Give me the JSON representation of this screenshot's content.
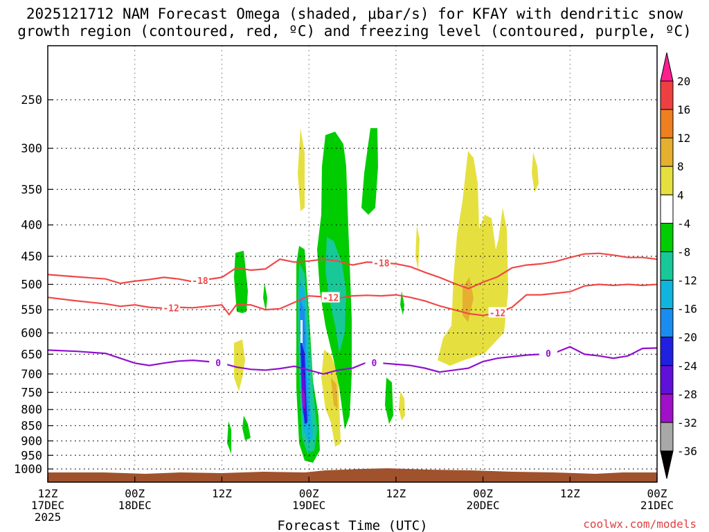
{
  "chart_data": {
    "type": "heatmap",
    "title_line1": "2025121712 NAM Forecast Omega (shaded, μbar/s) for KFAY with dendritic snow",
    "title_line2": "growth region (contoured, red, ºC) and freezing level (contoured, purple, ºC)",
    "xlabel": "Forecast Time (UTC)",
    "ylabel": "",
    "x_range_hours": [
      0,
      84
    ],
    "y_range_hpa": [
      200,
      1025
    ],
    "y_ticks": [
      250,
      300,
      350,
      400,
      450,
      500,
      550,
      600,
      650,
      700,
      750,
      800,
      850,
      900,
      950,
      1000
    ],
    "x_ticks": [
      {
        "hour": 0,
        "line1": "12Z",
        "line2": "17DEC",
        "line3": "2025"
      },
      {
        "hour": 12,
        "line1": "00Z",
        "line2": "18DEC",
        "line3": ""
      },
      {
        "hour": 24,
        "line1": "12Z",
        "line2": "",
        "line3": ""
      },
      {
        "hour": 36,
        "line1": "00Z",
        "line2": "19DEC",
        "line3": ""
      },
      {
        "hour": 48,
        "line1": "12Z",
        "line2": "",
        "line3": ""
      },
      {
        "hour": 60,
        "line1": "00Z",
        "line2": "20DEC",
        "line3": ""
      },
      {
        "hour": 72,
        "line1": "12Z",
        "line2": "",
        "line3": ""
      },
      {
        "hour": 84,
        "line1": "00Z",
        "line2": "21DEC",
        "line3": ""
      }
    ],
    "colorbar": {
      "labels": [
        "20",
        "16",
        "12",
        "8",
        "4",
        "-4",
        "-8",
        "-12",
        "-16",
        "-20",
        "-24",
        "-28",
        "-32",
        "-36"
      ],
      "colors": [
        "#ff1f8e",
        "#ee4040",
        "#ee7f20",
        "#e5b030",
        "#e5e040",
        "#ffffff",
        "#00cc00",
        "#18c898",
        "#10b4dc",
        "#1a8cf0",
        "#2020e0",
        "#6010d8",
        "#a010c8",
        "#a8a8a8",
        "#000000"
      ]
    },
    "series": [
      {
        "name": "-18 °C isotherm",
        "color": "#f04848",
        "label": "-18",
        "x": [
          0,
          4,
          8,
          10,
          12,
          14,
          16,
          18,
          20,
          22,
          24,
          26,
          28,
          30,
          32,
          34,
          36,
          38,
          40,
          42,
          44,
          46,
          48,
          50,
          52,
          54,
          56,
          58,
          60,
          62,
          64,
          66,
          68,
          70,
          72,
          74,
          76,
          78,
          80,
          82,
          84
        ],
        "y": [
          482,
          486,
          490,
          498,
          494,
          491,
          487,
          490,
          495,
          491,
          487,
          470,
          474,
          472,
          455,
          460,
          458,
          455,
          458,
          465,
          460,
          461,
          463,
          468,
          478,
          487,
          498,
          508,
          496,
          486,
          470,
          465,
          463,
          459,
          452,
          446,
          445,
          448,
          452,
          452,
          455
        ]
      },
      {
        "name": "-12 °C isotherm",
        "color": "#f04848",
        "label": "-12",
        "x": [
          0,
          4,
          8,
          10,
          12,
          14,
          16,
          18,
          20,
          22,
          24,
          25,
          26,
          28,
          30,
          32,
          34,
          36,
          38,
          40,
          42,
          44,
          46,
          48,
          50,
          52,
          54,
          56,
          58,
          60,
          62,
          64,
          66,
          68,
          70,
          72,
          74,
          76,
          78,
          80,
          82,
          84
        ],
        "y": [
          525,
          532,
          538,
          543,
          540,
          545,
          547,
          545,
          546,
          543,
          540,
          560,
          540,
          540,
          550,
          548,
          535,
          522,
          524,
          527,
          522,
          521,
          522,
          520,
          525,
          532,
          542,
          550,
          558,
          562,
          556,
          545,
          520,
          520,
          517,
          514,
          503,
          500,
          502,
          500,
          502,
          500
        ]
      },
      {
        "name": "0 °C freezing level",
        "color": "#9010d0",
        "label": "0",
        "x": [
          0,
          4,
          8,
          10,
          12,
          14,
          16,
          18,
          20,
          22,
          24,
          26,
          28,
          30,
          32,
          34,
          36,
          38,
          40,
          42,
          44,
          46,
          48,
          50,
          52,
          54,
          56,
          58,
          60,
          62,
          64,
          66,
          68,
          70,
          72,
          74,
          76,
          78,
          80,
          82,
          84
        ],
        "y": [
          640,
          643,
          648,
          660,
          672,
          678,
          672,
          667,
          665,
          668,
          672,
          682,
          688,
          690,
          686,
          680,
          690,
          700,
          690,
          685,
          670,
          672,
          675,
          678,
          685,
          695,
          690,
          685,
          668,
          660,
          656,
          652,
          650,
          646,
          632,
          650,
          654,
          660,
          654,
          636,
          635
        ]
      }
    ],
    "annotations": [
      "-18",
      "-12",
      "0"
    ]
  },
  "footer": {
    "credit": "coolwx.com/models"
  }
}
